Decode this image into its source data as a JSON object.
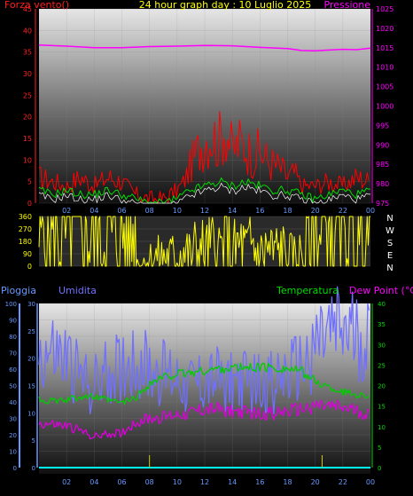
{
  "header": {
    "wind_title": "Forza vento()",
    "date_title": "24 hour graph day : 10 Luglio 2025",
    "pressure_title": "Pressione"
  },
  "legend": {
    "rain": "Pioggia",
    "humidity": "Umidita",
    "temperature": "Temperatura",
    "dewpoint": "Dew Point (°C)"
  },
  "colors": {
    "wind_gust": "#ff0000",
    "wind_avg": "#00dd00",
    "wind_low": "#ffffff",
    "pressure": "#ff00ff",
    "direction": "#ffff00",
    "humidity": "#7070ff",
    "temperature": "#00cc00",
    "dewpoint": "#dd00dd",
    "rain": "#00ffff",
    "rain_axis": "#6699ff"
  },
  "chart_data": [
    {
      "type": "line",
      "id": "wind_pressure",
      "x_ticks": [
        "02",
        "04",
        "06",
        "08",
        "10",
        "12",
        "14",
        "16",
        "18",
        "20",
        "22",
        "00"
      ],
      "y_left_ticks": [
        "0",
        "5",
        "10",
        "15",
        "20",
        "25",
        "30",
        "35",
        "40",
        "45"
      ],
      "y_left_lim": [
        0,
        45
      ],
      "y_right_ticks": [
        "975",
        "980",
        "985",
        "990",
        "995",
        "1000",
        "1005",
        "1010",
        "1015",
        "1020",
        "1025"
      ],
      "y_right_lim": [
        975,
        1025
      ],
      "series": [
        {
          "key": "pressure",
          "axis": "right",
          "x": [
            0,
            2,
            4,
            6,
            8,
            10,
            12,
            14,
            16,
            18,
            19,
            20,
            21,
            22,
            23,
            24
          ],
          "values": [
            1015.7,
            1015.4,
            1015.0,
            1015.0,
            1015.3,
            1015.4,
            1015.6,
            1015.5,
            1015.1,
            1014.8,
            1014.3,
            1014.2,
            1014.4,
            1014.6,
            1014.5,
            1014.9
          ]
        },
        {
          "key": "wind_gust",
          "axis": "left",
          "x": [
            0,
            1,
            2,
            3,
            4,
            5,
            6,
            7,
            8,
            9,
            10,
            10.5,
            11,
            11.5,
            12,
            12.5,
            13,
            13.5,
            14,
            14.5,
            15,
            15.5,
            16,
            16.5,
            17,
            17.5,
            18,
            18.5,
            19,
            20,
            21,
            22,
            23,
            24
          ],
          "values": [
            6,
            5,
            4,
            6,
            4,
            6,
            5,
            2,
            1,
            1,
            3,
            5,
            9,
            12,
            15,
            16,
            14,
            18,
            12,
            14,
            13,
            11,
            12,
            10,
            9,
            8,
            6,
            7,
            4,
            4,
            5,
            4,
            6,
            5
          ]
        },
        {
          "key": "wind_avg",
          "axis": "left",
          "x": [
            0,
            1,
            2,
            3,
            4,
            5,
            6,
            7,
            8,
            9,
            10,
            11,
            12,
            13,
            14,
            15,
            16,
            17,
            18,
            19,
            20,
            21,
            22,
            23,
            24
          ],
          "values": [
            3,
            2,
            3,
            2,
            2,
            3,
            2,
            1,
            0,
            0,
            1,
            3,
            4,
            5,
            4,
            5,
            4,
            3,
            3,
            2,
            1,
            2,
            3,
            2,
            3
          ]
        }
      ]
    },
    {
      "type": "line",
      "id": "wind_direction",
      "y_left_ticks": [
        "0",
        "90",
        "180",
        "270",
        "360"
      ],
      "y_left_lim": [
        0,
        360
      ],
      "y_right_labels": [
        "N",
        "W",
        "S",
        "E",
        "N"
      ],
      "series": [
        {
          "key": "direction",
          "x": [
            0,
            1,
            2,
            3,
            4,
            5,
            6,
            7,
            7.2,
            8,
            8.5,
            9,
            10,
            10.5,
            11,
            11.5,
            12,
            12.5,
            13,
            13.5,
            14,
            14.5,
            15,
            15.5,
            16,
            16.5,
            17,
            17.5,
            18,
            18.5,
            19,
            19.4,
            20,
            21,
            22,
            23,
            24
          ],
          "values": [
            250,
            255,
            252,
            258,
            255,
            250,
            248,
            252,
            15,
            55,
            65,
            72,
            75,
            110,
            70,
            130,
            95,
            120,
            105,
            150,
            85,
            140,
            100,
            135,
            80,
            120,
            95,
            110,
            75,
            70,
            80,
            255,
            258,
            255,
            252,
            255,
            250
          ]
        }
      ]
    },
    {
      "type": "line",
      "id": "temp_hum_rain",
      "x_ticks": [
        "02",
        "04",
        "06",
        "08",
        "10",
        "12",
        "14",
        "16",
        "18",
        "20",
        "22",
        "00"
      ],
      "humidity_ticks": [
        "0",
        "10",
        "20",
        "30",
        "40",
        "50",
        "60",
        "70",
        "80",
        "90",
        "100"
      ],
      "humidity_lim": [
        0,
        100
      ],
      "rain_ticks": [
        "0",
        "5",
        "10",
        "15",
        "20",
        "25",
        "30"
      ],
      "rain_lim": [
        0,
        30
      ],
      "temp_ticks": [
        "0",
        "5",
        "10",
        "15",
        "20",
        "25",
        "30",
        "35",
        "40"
      ],
      "temp_lim": [
        0,
        40
      ],
      "series": [
        {
          "key": "humidity",
          "axis": "humidity",
          "x": [
            0,
            1,
            2,
            3,
            4,
            5,
            6,
            6.5,
            7,
            8,
            9,
            10,
            11,
            12,
            13,
            14,
            15,
            16,
            17,
            18,
            19,
            19.5,
            20,
            21,
            22,
            23,
            24
          ],
          "values": [
            70,
            69,
            65,
            55,
            50,
            58,
            62,
            64,
            65,
            60,
            57,
            56,
            51,
            52,
            54,
            53,
            52,
            51,
            52,
            56,
            61,
            66,
            75,
            80,
            82,
            79,
            75
          ]
        },
        {
          "key": "temperature",
          "axis": "temp",
          "x": [
            0,
            1,
            2,
            3,
            4,
            5,
            6,
            7,
            8,
            9,
            10,
            11,
            12,
            13,
            14,
            15,
            16,
            17,
            18,
            19,
            20,
            21,
            22,
            23,
            24
          ],
          "values": [
            16.6,
            16.2,
            16.4,
            17.4,
            17.2,
            16.4,
            15.8,
            17.0,
            20.5,
            22.0,
            22.8,
            23.1,
            23.6,
            24.1,
            24.3,
            24.3,
            24.5,
            24.3,
            24.1,
            23.5,
            21.0,
            19.5,
            18.5,
            17.8,
            17.5
          ]
        },
        {
          "key": "dewpoint",
          "axis": "temp",
          "x": [
            0,
            1,
            2,
            3,
            4,
            5,
            6,
            7,
            8,
            9,
            10,
            11,
            12,
            13,
            14,
            15,
            16,
            17,
            18,
            19,
            20,
            21,
            22,
            23,
            24
          ],
          "values": [
            10.8,
            10.5,
            10.1,
            9.0,
            7.5,
            8.2,
            8.5,
            11.0,
            12.0,
            12.2,
            13.0,
            13.4,
            14.2,
            14.2,
            13.7,
            13.4,
            13.0,
            13.3,
            13.6,
            14.2,
            15.1,
            14.8,
            14.5,
            13.8,
            12.6
          ]
        },
        {
          "key": "rain",
          "axis": "rain",
          "x": [
            0,
            24
          ],
          "values": [
            0,
            0
          ]
        }
      ],
      "markers_x": [
        8,
        20.5
      ]
    }
  ]
}
